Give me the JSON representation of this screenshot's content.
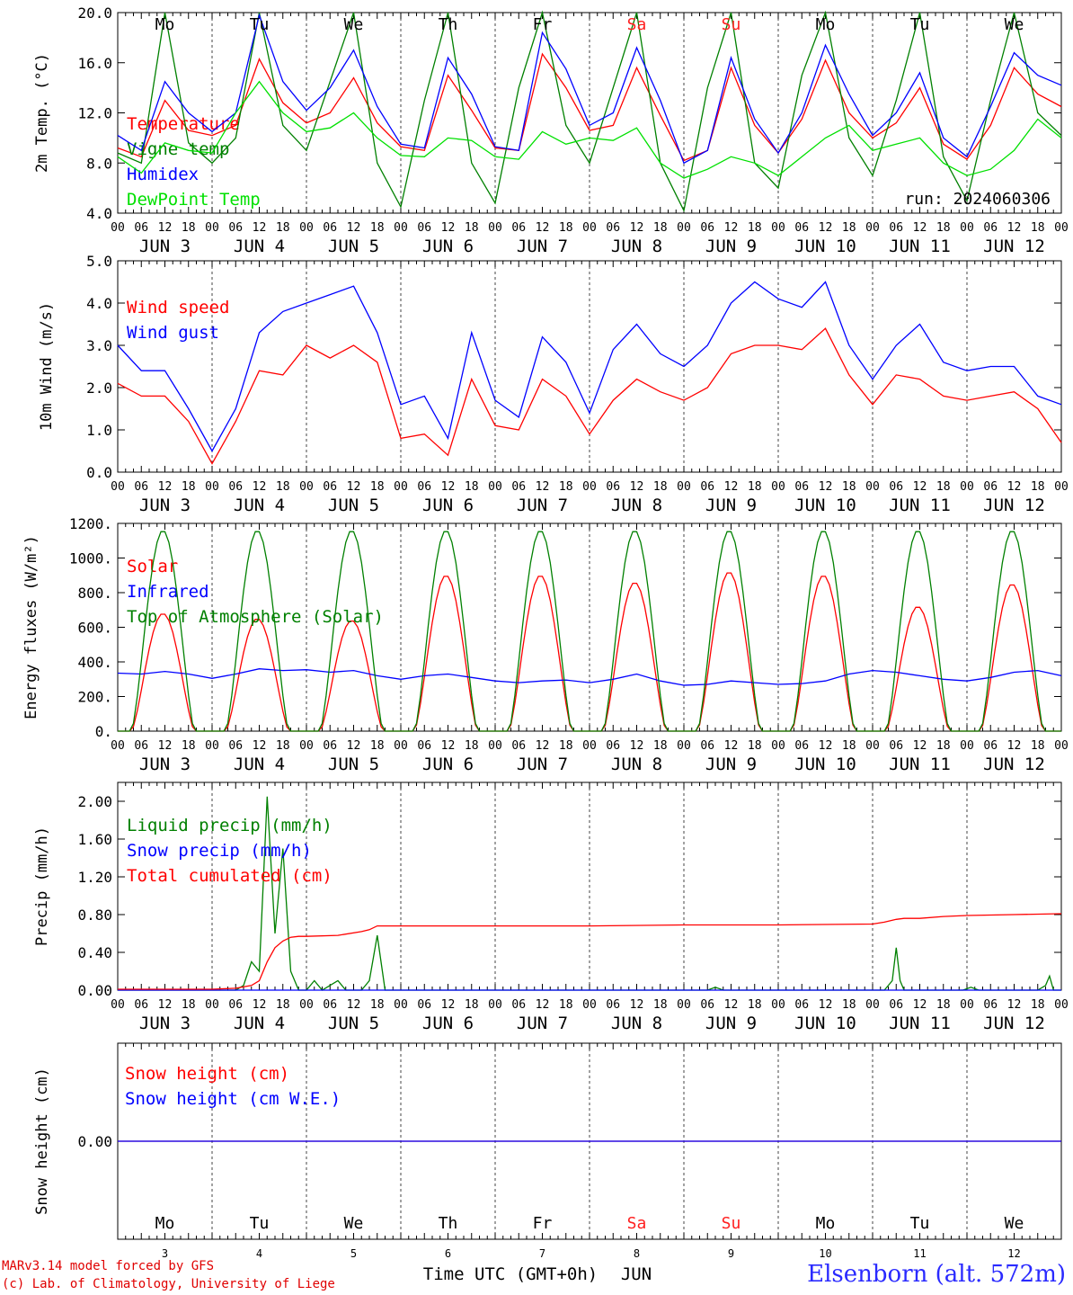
{
  "run_label": "run: 2024060306",
  "weekdays": [
    {
      "label": "Mo",
      "color": "#000000"
    },
    {
      "label": "Tu",
      "color": "#000000"
    },
    {
      "label": "We",
      "color": "#000000"
    },
    {
      "label": "Th",
      "color": "#000000"
    },
    {
      "label": "Fr",
      "color": "#000000"
    },
    {
      "label": "Sa",
      "color": "#ff2020"
    },
    {
      "label": "Su",
      "color": "#ff2020"
    },
    {
      "label": "Mo",
      "color": "#000000"
    },
    {
      "label": "Tu",
      "color": "#000000"
    },
    {
      "label": "We",
      "color": "#000000"
    }
  ],
  "day_numbers": [
    "3",
    "4",
    "5",
    "6",
    "7",
    "8",
    "9",
    "10",
    "11",
    "12"
  ],
  "date_labels": [
    "JUN  3",
    "JUN  4",
    "JUN  5",
    "JUN  6",
    "JUN  7",
    "JUN  8",
    "JUN  9",
    "JUN 10",
    "JUN 11",
    "JUN 12"
  ],
  "hour_labels": [
    "00",
    "06",
    "12",
    "18"
  ],
  "xaxis_title": "Time UTC (GMT+0h)",
  "month_label": "JUN",
  "credit_line1": "MARv3.14 model forced by GFS",
  "credit_line2": "(c) Lab. of Climatology, University of Liege",
  "station": "Elsenborn (alt. 572m)",
  "chart_data": [
    {
      "type": "line",
      "ylabel": "2m Temp. (°C)",
      "ylim": [
        4.0,
        20.0
      ],
      "yticks": [
        "4.0",
        "8.0",
        "12.0",
        "16.0",
        "20.0"
      ],
      "x_unit": "hours since 2024-06-03 00 UTC",
      "series": [
        {
          "name": "Temperature",
          "color": "#ff0000",
          "x": [
            0,
            6,
            12,
            18,
            24,
            30,
            36,
            42,
            48,
            54,
            60,
            66,
            72,
            78,
            84,
            90,
            96,
            102,
            108,
            114,
            120,
            126,
            132,
            138,
            144,
            150,
            156,
            162,
            168,
            174,
            180,
            186,
            192,
            198,
            204,
            210,
            216,
            222,
            228,
            234,
            240
          ],
          "values": [
            9.2,
            8.5,
            13.0,
            10.6,
            10.2,
            11.0,
            16.3,
            12.8,
            11.2,
            12.0,
            14.8,
            11.2,
            9.3,
            9.0,
            15.0,
            12.2,
            9.2,
            9.0,
            16.7,
            14.0,
            10.6,
            11.0,
            15.6,
            11.8,
            8.2,
            9.0,
            15.6,
            11.0,
            8.8,
            11.5,
            16.2,
            12.0,
            10.0,
            11.2,
            14.0,
            9.5,
            8.3,
            11.0,
            15.6,
            13.5,
            12.5
          ]
        },
        {
          "name": "Vigne temp",
          "color": "#008000",
          "x": [
            0,
            6,
            12,
            18,
            24,
            30,
            36,
            42,
            48,
            54,
            60,
            66,
            72,
            78,
            84,
            90,
            96,
            102,
            108,
            114,
            120,
            126,
            132,
            138,
            144,
            150,
            156,
            162,
            168,
            174,
            180,
            186,
            192,
            198,
            204,
            210,
            216,
            222,
            228,
            234,
            240
          ],
          "values": [
            8.8,
            8.0,
            20.5,
            9.6,
            8.0,
            10.0,
            20.5,
            11.0,
            9.0,
            14.5,
            20.5,
            8.0,
            4.5,
            13.0,
            20.5,
            8.0,
            4.8,
            14.0,
            20.5,
            11.0,
            8.0,
            14.0,
            20.5,
            8.0,
            4.2,
            14.0,
            20.5,
            8.0,
            6.0,
            15.0,
            20.5,
            10.0,
            7.0,
            13.0,
            20.5,
            8.5,
            5.0,
            13.0,
            20.5,
            12.0,
            10.2
          ]
        },
        {
          "name": "Humidex",
          "color": "#0000ff",
          "x": [
            0,
            6,
            12,
            18,
            24,
            30,
            36,
            42,
            48,
            54,
            60,
            66,
            72,
            78,
            84,
            90,
            96,
            102,
            108,
            114,
            120,
            126,
            132,
            138,
            144,
            150,
            156,
            162,
            168,
            174,
            180,
            186,
            192,
            198,
            204,
            210,
            216,
            222,
            228,
            234,
            240
          ],
          "values": [
            10.2,
            9.0,
            14.5,
            12.0,
            10.5,
            12.0,
            19.8,
            14.5,
            12.2,
            14.0,
            17.0,
            12.5,
            9.5,
            9.2,
            16.4,
            13.5,
            9.3,
            9.0,
            18.4,
            15.5,
            11.0,
            12.0,
            17.2,
            13.0,
            8.0,
            9.0,
            16.4,
            11.5,
            8.8,
            12.0,
            17.4,
            13.5,
            10.2,
            12.0,
            15.2,
            10.0,
            8.5,
            12.5,
            16.8,
            15.0,
            14.2
          ]
        },
        {
          "name": "DewPoint Temp",
          "color": "#00e000",
          "x": [
            0,
            6,
            12,
            18,
            24,
            30,
            36,
            42,
            48,
            54,
            60,
            66,
            72,
            78,
            84,
            90,
            96,
            102,
            108,
            114,
            120,
            126,
            132,
            138,
            144,
            150,
            156,
            162,
            168,
            174,
            180,
            186,
            192,
            198,
            204,
            210,
            216,
            222,
            228,
            234,
            240
          ],
          "values": [
            8.5,
            7.2,
            9.6,
            9.0,
            8.8,
            12.0,
            14.5,
            12.0,
            10.5,
            10.8,
            12.0,
            10.0,
            8.6,
            8.5,
            10.0,
            9.8,
            8.5,
            8.3,
            10.5,
            9.5,
            10.0,
            9.8,
            10.8,
            8.0,
            6.8,
            7.5,
            8.5,
            8.0,
            7.0,
            8.5,
            10.0,
            11.0,
            9.0,
            9.5,
            10.0,
            8.0,
            7.0,
            7.5,
            9.0,
            11.5,
            10.0
          ]
        }
      ]
    },
    {
      "type": "line",
      "ylabel": "10m Wind (m/s)",
      "ylim": [
        0.0,
        5.0
      ],
      "yticks": [
        "0.0",
        "1.0",
        "2.0",
        "3.0",
        "4.0",
        "5.0"
      ],
      "x_unit": "hours since 2024-06-03 00 UTC",
      "series": [
        {
          "name": "Wind speed",
          "color": "#ff0000",
          "x": [
            0,
            6,
            12,
            18,
            24,
            30,
            36,
            42,
            48,
            54,
            60,
            66,
            72,
            78,
            84,
            90,
            96,
            102,
            108,
            114,
            120,
            126,
            132,
            138,
            144,
            150,
            156,
            162,
            168,
            174,
            180,
            186,
            192,
            198,
            204,
            210,
            216,
            222,
            228,
            234,
            240
          ],
          "values": [
            2.1,
            1.8,
            1.8,
            1.2,
            0.2,
            1.2,
            2.4,
            2.3,
            3.0,
            2.7,
            3.0,
            2.6,
            0.8,
            0.9,
            0.4,
            2.2,
            1.1,
            1.0,
            2.2,
            1.8,
            0.9,
            1.7,
            2.2,
            1.9,
            1.7,
            2.0,
            2.8,
            3.0,
            3.0,
            2.9,
            3.4,
            2.3,
            1.6,
            2.3,
            2.2,
            1.8,
            1.7,
            1.8,
            1.9,
            1.5,
            0.7
          ]
        },
        {
          "name": "Wind gust",
          "color": "#0000ff",
          "x": [
            0,
            6,
            12,
            18,
            24,
            30,
            36,
            42,
            48,
            54,
            60,
            66,
            72,
            78,
            84,
            90,
            96,
            102,
            108,
            114,
            120,
            126,
            132,
            138,
            144,
            150,
            156,
            162,
            168,
            174,
            180,
            186,
            192,
            198,
            204,
            210,
            216,
            222,
            228,
            234,
            240
          ],
          "values": [
            3.0,
            2.4,
            2.4,
            1.5,
            0.5,
            1.5,
            3.3,
            3.8,
            4.0,
            4.2,
            4.4,
            3.3,
            1.6,
            1.8,
            0.8,
            3.3,
            1.7,
            1.3,
            3.2,
            2.6,
            1.4,
            2.9,
            3.5,
            2.8,
            2.5,
            3.0,
            4.0,
            4.5,
            4.1,
            3.9,
            4.5,
            3.0,
            2.2,
            3.0,
            3.5,
            2.6,
            2.4,
            2.5,
            2.5,
            1.8,
            1.6
          ]
        }
      ]
    },
    {
      "type": "line",
      "ylabel": "Energy fluxes (W/m²)",
      "ylim": [
        0,
        1200
      ],
      "yticks": [
        "0.",
        "200.",
        "400.",
        "600.",
        "800.",
        "1000.",
        "1200."
      ],
      "x_unit": "hours since 2024-06-03 00 UTC",
      "series": [
        {
          "name": "Solar",
          "color": "#ff0000",
          "daily_peaks": [
            680,
            650,
            640,
            900,
            900,
            860,
            920,
            900,
            720,
            850
          ]
        },
        {
          "name": "Infrared",
          "color": "#0000ff",
          "x": [
            0,
            6,
            12,
            18,
            24,
            30,
            36,
            42,
            48,
            54,
            60,
            66,
            72,
            78,
            84,
            90,
            96,
            102,
            108,
            114,
            120,
            126,
            132,
            138,
            144,
            150,
            156,
            162,
            168,
            174,
            180,
            186,
            192,
            198,
            204,
            210,
            216,
            222,
            228,
            234,
            240
          ],
          "values": [
            335,
            330,
            345,
            330,
            305,
            330,
            360,
            350,
            355,
            340,
            350,
            320,
            300,
            320,
            330,
            310,
            290,
            280,
            290,
            295,
            280,
            300,
            330,
            290,
            265,
            270,
            290,
            280,
            270,
            275,
            290,
            330,
            350,
            340,
            320,
            300,
            290,
            310,
            340,
            350,
            320
          ]
        },
        {
          "name": "Top of Atmosphere (Solar)",
          "color": "#008000",
          "daily_peaks": [
            1160,
            1160,
            1160,
            1160,
            1160,
            1160,
            1160,
            1160,
            1160,
            1160
          ]
        }
      ]
    },
    {
      "type": "line",
      "ylabel": "Precip (mm/h)",
      "ylim": [
        0.0,
        2.2
      ],
      "yticks": [
        "0.00",
        "0.40",
        "0.80",
        "1.20",
        "1.60",
        "2.00"
      ],
      "x_unit": "hours since 2024-06-03 00 UTC",
      "series": [
        {
          "name": "Liquid precip (mm/h)",
          "color": "#008000",
          "x": [
            0,
            24,
            30,
            32,
            34,
            36,
            38,
            40,
            42,
            44,
            46,
            48,
            50,
            52,
            56,
            58,
            62,
            64,
            66,
            68,
            70,
            72,
            96,
            150,
            152,
            154,
            195,
            197,
            198,
            199,
            200,
            201,
            202,
            215,
            217,
            219,
            234,
            236,
            237,
            238,
            240
          ],
          "values": [
            0,
            0,
            0,
            0.05,
            0.3,
            0.2,
            2.05,
            0.6,
            1.5,
            0.2,
            0,
            0,
            0.1,
            0,
            0.1,
            0,
            0,
            0.1,
            0.58,
            0,
            0,
            0,
            0,
            0,
            0.03,
            0,
            0,
            0.1,
            0.45,
            0.1,
            0,
            0,
            0,
            0,
            0.03,
            0,
            0,
            0.05,
            0.15,
            0,
            0
          ]
        },
        {
          "name": "Snow precip (mm/h)",
          "color": "#0000ff",
          "x": [
            0,
            240
          ],
          "values": [
            0,
            0
          ]
        },
        {
          "name": "Total cumulated (cm)",
          "color": "#ff0000",
          "x": [
            0,
            24,
            30,
            34,
            36,
            38,
            40,
            42,
            44,
            46,
            48,
            56,
            62,
            64,
            66,
            70,
            96,
            120,
            144,
            168,
            192,
            195,
            198,
            200,
            204,
            210,
            216,
            228,
            240
          ],
          "values": [
            0.01,
            0.01,
            0.02,
            0.05,
            0.1,
            0.3,
            0.45,
            0.52,
            0.56,
            0.57,
            0.57,
            0.58,
            0.62,
            0.64,
            0.68,
            0.68,
            0.68,
            0.68,
            0.69,
            0.69,
            0.7,
            0.72,
            0.75,
            0.76,
            0.76,
            0.78,
            0.79,
            0.8,
            0.81
          ]
        }
      ]
    },
    {
      "type": "line",
      "ylabel": "Snow height (cm)",
      "yticks": [
        "0.00"
      ],
      "x_unit": "hours since 2024-06-03 00 UTC",
      "series": [
        {
          "name": "Snow height (cm)",
          "color": "#ff0000",
          "x": [
            0,
            240
          ],
          "values": [
            0,
            0
          ]
        },
        {
          "name": "Snow height (cm W.E.)",
          "color": "#0000ff",
          "x": [
            0,
            240
          ],
          "values": [
            0,
            0
          ]
        }
      ]
    }
  ]
}
